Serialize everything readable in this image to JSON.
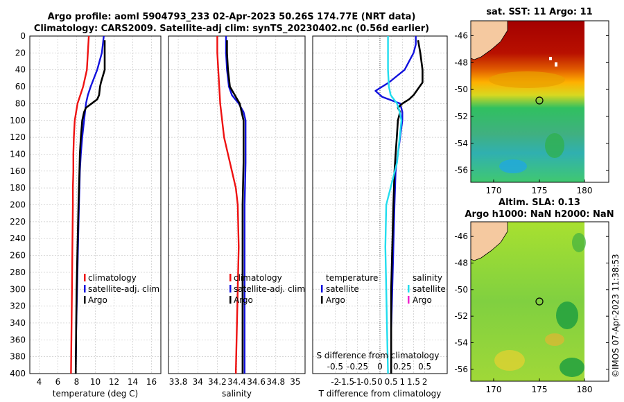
{
  "title_line1": "Argo profile: aoml 5904793_233 02-Apr-2023 50.26S 174.77E (NRT data)",
  "title_line2": "Climatology: CARS2009. Satellite-adj clim: synTS_20230402.nc (0.56d earlier)",
  "sst_title": "sat. SST: 11 Argo: 11",
  "sla_title_line1": "Altim. SLA: 0.13",
  "sla_title_line2": "Argo h1000: NaN h2000: NaN",
  "watermark": "©IMOS 07-Apr-2023 11:38:53",
  "colors": {
    "climatology": "#ee1111",
    "satellite": "#1111dd",
    "argo": "#000000",
    "salinity_satellite": "#22ddee",
    "salinity_argo": "#ee22cc"
  },
  "chart_data": [
    {
      "type": "line",
      "name": "temperature-profile",
      "xlabel": "temperature (deg C)",
      "xlim": [
        3,
        17
      ],
      "xticks": [
        "4",
        "6",
        "8",
        "10",
        "12",
        "14",
        "16"
      ],
      "xtick_values": [
        4,
        6,
        8,
        10,
        12,
        14,
        16
      ],
      "ylim": [
        0,
        400
      ],
      "yticks": [
        "0",
        "20",
        "40",
        "60",
        "80",
        "100",
        "120",
        "140",
        "160",
        "180",
        "200",
        "220",
        "240",
        "260",
        "280",
        "300",
        "320",
        "340",
        "360",
        "380",
        "400"
      ],
      "grid": true,
      "legend": [
        "climatology",
        "satellite-adj. clim",
        "Argo"
      ],
      "series": [
        {
          "name": "climatology",
          "depth": [
            0,
            20,
            40,
            60,
            80,
            100,
            120,
            140,
            160,
            180,
            200,
            250,
            300,
            350,
            400
          ],
          "values": [
            9.3,
            9.2,
            9.1,
            8.7,
            8.1,
            7.8,
            7.7,
            7.65,
            7.65,
            7.6,
            7.6,
            7.55,
            7.5,
            7.45,
            7.4
          ]
        },
        {
          "name": "satellite-adj. clim",
          "depth": [
            0,
            10,
            20,
            40,
            60,
            70,
            80,
            100,
            120,
            140,
            160,
            200,
            250,
            300,
            350,
            400
          ],
          "values": [
            10.9,
            10.8,
            10.7,
            10.2,
            9.5,
            9.2,
            9.0,
            8.8,
            8.6,
            8.45,
            8.35,
            8.25,
            8.15,
            8.05,
            7.95,
            7.9
          ]
        },
        {
          "name": "Argo",
          "depth": [
            5,
            20,
            40,
            55,
            60,
            70,
            75,
            80,
            85,
            90,
            100,
            120,
            140,
            160,
            200,
            250,
            300,
            350,
            400
          ],
          "values": [
            11.0,
            11.0,
            11.0,
            10.6,
            10.5,
            10.4,
            10.2,
            9.6,
            9.0,
            8.8,
            8.6,
            8.45,
            8.35,
            8.3,
            8.2,
            8.1,
            8.0,
            7.95,
            7.9
          ]
        }
      ]
    },
    {
      "type": "line",
      "name": "salinity-profile",
      "xlabel": "salinity",
      "xlim": [
        33.7,
        35.1
      ],
      "xticks": [
        "33.8",
        "34",
        "34.2",
        "34.4",
        "34.6",
        "34.8",
        "35"
      ],
      "xtick_values": [
        33.8,
        34,
        34.2,
        34.4,
        34.6,
        34.8,
        35
      ],
      "ylim": [
        0,
        400
      ],
      "grid": true,
      "legend": [
        "climatology",
        "satellite-adj. clim",
        "Argo"
      ],
      "series": [
        {
          "name": "climatology",
          "depth": [
            0,
            20,
            40,
            60,
            80,
            100,
            120,
            140,
            160,
            180,
            200,
            250,
            300,
            350,
            400
          ],
          "values": [
            34.2,
            34.2,
            34.21,
            34.22,
            34.23,
            34.25,
            34.27,
            34.31,
            34.35,
            34.39,
            34.41,
            34.42,
            34.41,
            34.4,
            34.39
          ]
        },
        {
          "name": "satellite-adj. clim",
          "depth": [
            0,
            20,
            40,
            60,
            70,
            80,
            90,
            100,
            150,
            200,
            250,
            300,
            350,
            400
          ],
          "values": [
            34.29,
            34.29,
            34.3,
            34.32,
            34.35,
            34.42,
            34.47,
            34.49,
            34.49,
            34.48,
            34.48,
            34.48,
            34.48,
            34.48
          ]
        },
        {
          "name": "Argo",
          "depth": [
            5,
            20,
            40,
            60,
            80,
            100,
            150,
            200,
            250,
            300,
            350,
            400
          ],
          "values": [
            34.3,
            34.3,
            34.31,
            34.33,
            34.43,
            34.47,
            34.47,
            34.46,
            34.46,
            34.46,
            34.46,
            34.46
          ]
        }
      ]
    },
    {
      "type": "line",
      "name": "difference-profile",
      "xlabel": "T difference from climatology",
      "xlabel_top": "S difference from climatology",
      "xlim": [
        -3,
        3
      ],
      "xticks": [
        "-2",
        "-1.5",
        "-1",
        "-0.5",
        "0",
        "0.5",
        "1",
        "1.5",
        "2"
      ],
      "xtick_values": [
        -2,
        -1.5,
        -1,
        -0.5,
        0,
        0.5,
        1,
        1.5,
        2
      ],
      "s_xticks": [
        "-0.5",
        "-0.25",
        "0",
        "0.25",
        "0.5"
      ],
      "s_xtick_values": [
        -0.5,
        -0.25,
        0,
        0.25,
        0.5
      ],
      "ylim": [
        0,
        400
      ],
      "grid": true,
      "legend_left_title": "temperature",
      "legend_right_title": "salinity",
      "legend_left": [
        "satellite",
        "Argo"
      ],
      "legend_right": [
        "satellite",
        "Argo"
      ],
      "series": [
        {
          "name": "T satellite",
          "depth": [
            0,
            10,
            20,
            40,
            55,
            65,
            72,
            80,
            90,
            100,
            120,
            140,
            160,
            200,
            250,
            300,
            350,
            400
          ],
          "values": [
            1.6,
            1.6,
            1.5,
            1.1,
            0.4,
            -0.2,
            0.1,
            0.9,
            1.0,
            1.0,
            0.9,
            0.8,
            0.7,
            0.65,
            0.6,
            0.55,
            0.5,
            0.5
          ]
        },
        {
          "name": "T Argo",
          "depth": [
            5,
            20,
            40,
            55,
            70,
            75,
            80,
            85,
            90,
            100,
            120,
            140,
            160,
            200,
            250,
            300,
            350,
            400
          ],
          "values": [
            1.7,
            1.8,
            1.9,
            1.9,
            1.5,
            1.3,
            1.0,
            0.8,
            0.9,
            0.8,
            0.75,
            0.7,
            0.65,
            0.6,
            0.55,
            0.5,
            0.5,
            0.5
          ]
        },
        {
          "name": "S satellite",
          "depth": [
            0,
            20,
            40,
            60,
            70,
            80,
            90,
            100,
            120,
            150,
            200,
            250,
            300,
            350,
            400
          ],
          "values": [
            0.09,
            0.09,
            0.09,
            0.1,
            0.12,
            0.19,
            0.22,
            0.24,
            0.22,
            0.19,
            0.07,
            0.06,
            0.07,
            0.08,
            0.09
          ]
        }
      ]
    }
  ]
}
